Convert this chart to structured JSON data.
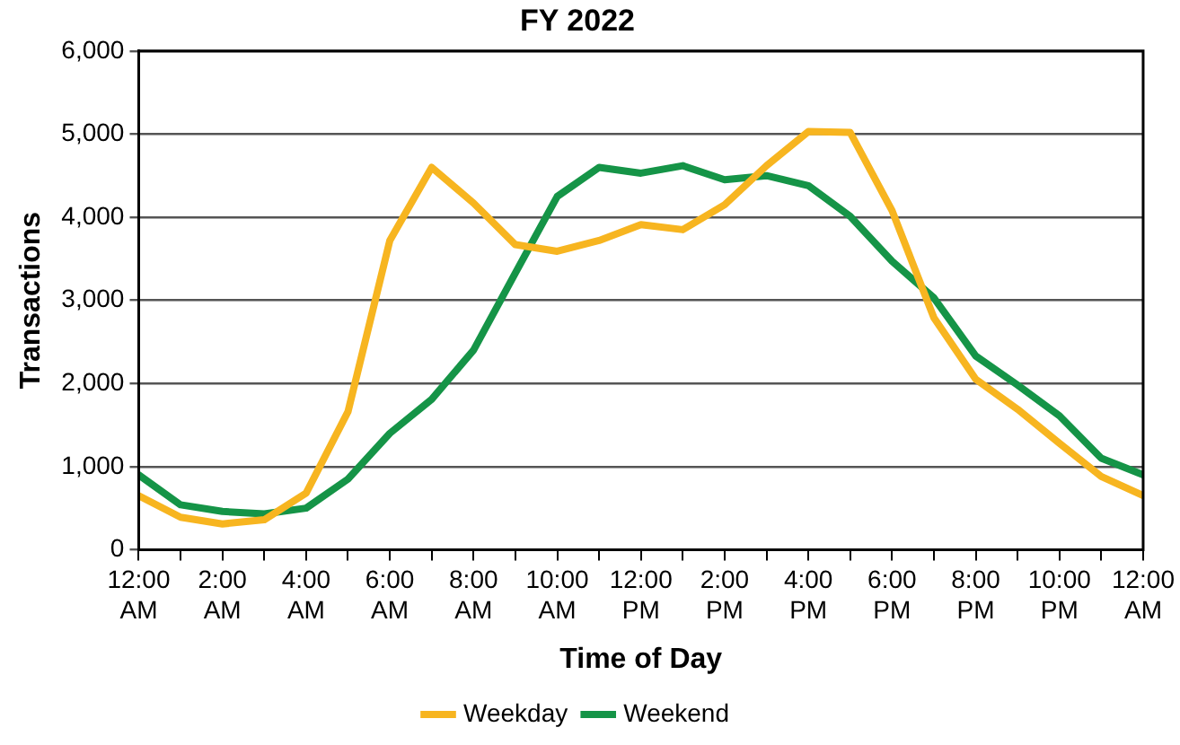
{
  "chart_data": {
    "type": "line",
    "title": "FY 2022",
    "xlabel": "Time of Day",
    "ylabel": "Transactions",
    "x": [
      0,
      1,
      2,
      3,
      4,
      5,
      6,
      7,
      8,
      9,
      10,
      11,
      12,
      13,
      14,
      15,
      16,
      17,
      18,
      19,
      20,
      21,
      22,
      23,
      24
    ],
    "series": [
      {
        "name": "Weekday",
        "color": "#f7b520",
        "values": [
          650,
          390,
          310,
          360,
          680,
          1660,
          3720,
          4600,
          4170,
          3670,
          3590,
          3720,
          3910,
          3850,
          4150,
          4620,
          5030,
          5020,
          4080,
          2790,
          2050,
          1690,
          1280,
          880,
          650
        ]
      },
      {
        "name": "Weekend",
        "color": "#159447",
        "values": [
          900,
          540,
          460,
          430,
          500,
          850,
          1400,
          1810,
          2400,
          3330,
          4250,
          4600,
          4530,
          4620,
          4450,
          4500,
          4380,
          4010,
          3470,
          3030,
          2330,
          1980,
          1610,
          1100,
          900
        ]
      }
    ],
    "xlim": [
      0,
      24
    ],
    "xticks": [
      {
        "value": 0,
        "label": "12:00 AM"
      },
      {
        "value": 1,
        "label": null
      },
      {
        "value": 2,
        "label": "2:00 AM"
      },
      {
        "value": 3,
        "label": null
      },
      {
        "value": 4,
        "label": "4:00 AM"
      },
      {
        "value": 5,
        "label": null
      },
      {
        "value": 6,
        "label": "6:00 AM"
      },
      {
        "value": 7,
        "label": null
      },
      {
        "value": 8,
        "label": "8:00 AM"
      },
      {
        "value": 9,
        "label": null
      },
      {
        "value": 10,
        "label": "10:00 AM"
      },
      {
        "value": 11,
        "label": null
      },
      {
        "value": 12,
        "label": "12:00 PM"
      },
      {
        "value": 13,
        "label": null
      },
      {
        "value": 14,
        "label": "2:00 PM"
      },
      {
        "value": 15,
        "label": null
      },
      {
        "value": 16,
        "label": "4:00 PM"
      },
      {
        "value": 17,
        "label": null
      },
      {
        "value": 18,
        "label": "6:00 PM"
      },
      {
        "value": 19,
        "label": null
      },
      {
        "value": 20,
        "label": "8:00 PM"
      },
      {
        "value": 21,
        "label": null
      },
      {
        "value": 22,
        "label": "10:00 PM"
      },
      {
        "value": 23,
        "label": null
      },
      {
        "value": 24,
        "label": "12:00 AM"
      }
    ],
    "ylim": [
      0,
      6000
    ],
    "yticks": [
      {
        "value": 0,
        "label": "0"
      },
      {
        "value": 1000,
        "label": "1,000"
      },
      {
        "value": 2000,
        "label": "2,000"
      },
      {
        "value": 3000,
        "label": "3,000"
      },
      {
        "value": 4000,
        "label": "4,000"
      },
      {
        "value": 5000,
        "label": "5,000"
      },
      {
        "value": 6000,
        "label": "6,000"
      }
    ],
    "grid": "y",
    "legend": "bottom",
    "marker": "none",
    "line_style": "solid"
  }
}
